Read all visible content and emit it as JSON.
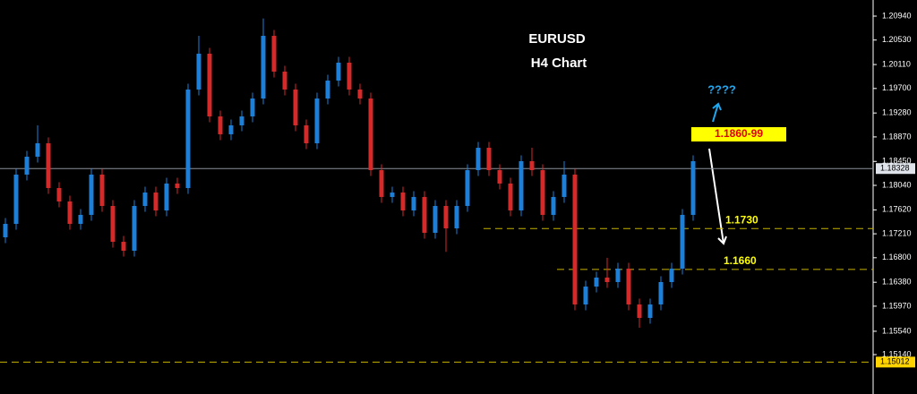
{
  "chart_data": {
    "type": "candlestick",
    "title": "EURUSD",
    "subtitle": "H4 Chart",
    "open": [
      1.1715,
      1.1738,
      1.18224,
      1.18531,
      1.18761,
      1.17994,
      1.17764,
      1.1738,
      1.17534,
      1.18224,
      1.17687,
      1.17073,
      1.1692,
      1.17687,
      1.17917,
      1.1761,
      1.18071,
      1.17994,
      1.19682,
      1.20296,
      1.19221,
      1.18915,
      1.19068,
      1.19221,
      1.19528,
      1.20602,
      1.19989,
      1.19682,
      1.19068,
      1.18761,
      1.19528,
      1.19835,
      1.20142,
      1.19682,
      1.19528,
      1.18301,
      1.17841,
      1.17917,
      1.1761,
      1.17841,
      1.17227,
      1.17687,
      1.17303,
      1.17687,
      1.18301,
      1.18684,
      1.18301,
      1.18071,
      1.1761,
      1.18454,
      1.18301,
      1.17534,
      1.17841,
      1.18224,
      1.15999,
      1.16306,
      1.1646,
      1.16383,
      1.16613,
      1.15999,
      1.15769,
      1.15999,
      1.16383,
      1.16613,
      1.17534
    ],
    "high": [
      1.1748,
      1.18324,
      1.18631,
      1.19068,
      1.18861,
      1.18094,
      1.17864,
      1.17634,
      1.18324,
      1.18324,
      1.17787,
      1.17173,
      1.17787,
      1.18017,
      1.18017,
      1.18171,
      1.18171,
      1.19782,
      1.20602,
      1.20396,
      1.19321,
      1.19168,
      1.19321,
      1.19628,
      1.209,
      1.20702,
      1.20089,
      1.19782,
      1.19168,
      1.19628,
      1.19935,
      1.20242,
      1.20242,
      1.19782,
      1.19628,
      1.18401,
      1.18017,
      1.18017,
      1.17941,
      1.17941,
      1.17787,
      1.17787,
      1.17787,
      1.18401,
      1.18784,
      1.18784,
      1.18401,
      1.18171,
      1.18554,
      1.18684,
      1.18401,
      1.17941,
      1.18454,
      1.18324,
      1.16406,
      1.1656,
      1.168,
      1.16713,
      1.16713,
      1.16099,
      1.16099,
      1.16483,
      1.16713,
      1.17634,
      1.18554
    ],
    "low": [
      1.1705,
      1.1728,
      1.18124,
      1.18431,
      1.17894,
      1.17664,
      1.1728,
      1.1728,
      1.17434,
      1.17587,
      1.16973,
      1.1682,
      1.1682,
      1.17587,
      1.1751,
      1.1751,
      1.17894,
      1.17894,
      1.19582,
      1.19121,
      1.18815,
      1.18815,
      1.18968,
      1.19121,
      1.19428,
      1.19889,
      1.19582,
      1.18968,
      1.18661,
      1.18661,
      1.19428,
      1.19735,
      1.19582,
      1.19428,
      1.18201,
      1.17741,
      1.17741,
      1.1751,
      1.1751,
      1.17127,
      1.17127,
      1.169,
      1.17203,
      1.17587,
      1.18201,
      1.18201,
      1.17971,
      1.1751,
      1.1751,
      1.18201,
      1.17434,
      1.17434,
      1.17741,
      1.15899,
      1.15899,
      1.16206,
      1.16283,
      1.16283,
      1.15899,
      1.156,
      1.15669,
      1.15899,
      1.16283,
      1.16513,
      1.17434
    ],
    "close": [
      1.1738,
      1.18224,
      1.18531,
      1.18761,
      1.17994,
      1.17764,
      1.1738,
      1.17534,
      1.18224,
      1.17687,
      1.17073,
      1.1692,
      1.17687,
      1.17917,
      1.1761,
      1.18071,
      1.17994,
      1.19682,
      1.20296,
      1.19221,
      1.18915,
      1.19068,
      1.19221,
      1.19528,
      1.20602,
      1.19989,
      1.19682,
      1.19068,
      1.18761,
      1.19528,
      1.19835,
      1.20142,
      1.19682,
      1.19528,
      1.18301,
      1.17841,
      1.17917,
      1.1761,
      1.17841,
      1.17227,
      1.17687,
      1.17303,
      1.17687,
      1.18301,
      1.18684,
      1.18301,
      1.18071,
      1.1761,
      1.18454,
      1.18301,
      1.17534,
      1.17841,
      1.18224,
      1.15999,
      1.16306,
      1.1646,
      1.16383,
      1.16613,
      1.15999,
      1.15769,
      1.15999,
      1.16383,
      1.16613,
      1.17534,
      1.18454
    ],
    "up_color": "#1e7fd8",
    "down_color": "#d42a2a",
    "ylim": [
      1.14465,
      1.21216
    ],
    "yticks": [
      {
        "value": 1.2094,
        "label": "1.20940"
      },
      {
        "value": 1.2053,
        "label": "1.20530"
      },
      {
        "value": 1.2011,
        "label": "1.20110"
      },
      {
        "value": 1.197,
        "label": "1.19700"
      },
      {
        "value": 1.1928,
        "label": "1.19280"
      },
      {
        "value": 1.1887,
        "label": "1.18870"
      },
      {
        "value": 1.1845,
        "label": "1.18450"
      },
      {
        "value": 1.1804,
        "label": "1.18040"
      },
      {
        "value": 1.1762,
        "label": "1.17620"
      },
      {
        "value": 1.1721,
        "label": "1.17210"
      },
      {
        "value": 1.168,
        "label": "1.16800"
      },
      {
        "value": 1.1638,
        "label": "1.16380"
      },
      {
        "value": 1.1597,
        "label": "1.15970"
      },
      {
        "value": 1.1554,
        "label": "1.15540"
      },
      {
        "value": 1.1514,
        "label": "1.15140"
      }
    ],
    "current_price": {
      "value": 1.18328,
      "label": "1.18328"
    },
    "levels": [
      {
        "value": 1.173,
        "label": "1.1730"
      },
      {
        "value": 1.166,
        "label": "1.1660"
      }
    ],
    "bottom_level": {
      "value": 1.15012,
      "label": "1.15012"
    },
    "target": "1.1860-99",
    "question": "????"
  }
}
